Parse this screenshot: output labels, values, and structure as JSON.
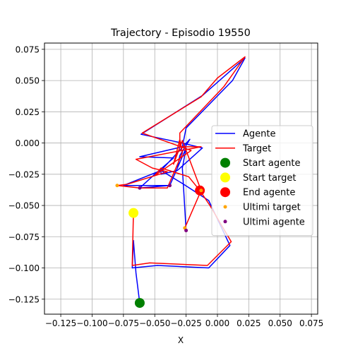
{
  "chart_data": {
    "type": "line",
    "title": "Trajectory - Episodio 19550",
    "xlabel": "X",
    "ylabel": "",
    "xlim": [
      -0.138,
      0.08
    ],
    "ylim": [
      -0.137,
      0.08
    ],
    "x_ticks": [
      -0.125,
      -0.1,
      -0.075,
      -0.05,
      -0.025,
      0.0,
      0.025,
      0.05,
      0.075
    ],
    "x_tick_labels": [
      "−0.125",
      "−0.100",
      "−0.075",
      "−0.050",
      "−0.025",
      "0.000",
      "0.025",
      "0.050",
      "0.075"
    ],
    "y_ticks": [
      0.075,
      0.05,
      0.025,
      0.0,
      -0.025,
      -0.05,
      -0.075,
      -0.1,
      -0.125
    ],
    "y_tick_labels": [
      "0.075",
      "0.050",
      "0.025",
      "0.000",
      "−0.025",
      "−0.050",
      "−0.075",
      "−0.100",
      "−0.125"
    ],
    "grid": true,
    "legend_position": "center-right",
    "series": [
      {
        "name": "Agente",
        "kind": "line",
        "color": "#0000ff",
        "points": [
          [
            -0.062,
            -0.128
          ],
          [
            -0.065,
            -0.104
          ],
          [
            -0.067,
            -0.078
          ],
          [
            -0.068,
            -0.1
          ],
          [
            -0.048,
            -0.098
          ],
          [
            -0.007,
            -0.1
          ],
          [
            0.01,
            -0.082
          ],
          [
            -0.007,
            -0.046
          ],
          [
            -0.027,
            -0.033
          ],
          [
            -0.045,
            -0.022
          ],
          [
            -0.045,
            -0.025
          ],
          [
            -0.032,
            -0.022
          ],
          [
            -0.012,
            -0.004
          ],
          [
            -0.028,
            0.0
          ],
          [
            -0.061,
            0.007
          ],
          [
            -0.012,
            0.038
          ],
          [
            0.022,
            0.068
          ],
          [
            0.012,
            0.05
          ],
          [
            -0.025,
            0.012
          ],
          [
            -0.028,
            -0.003
          ],
          [
            -0.062,
            -0.011
          ],
          [
            -0.035,
            -0.012
          ],
          [
            -0.05,
            -0.025
          ],
          [
            -0.062,
            -0.036
          ],
          [
            -0.038,
            -0.034
          ],
          [
            -0.06,
            -0.034
          ],
          [
            -0.075,
            -0.034
          ],
          [
            -0.045,
            -0.022
          ],
          [
            -0.022,
            0.003
          ],
          [
            -0.03,
            -0.01
          ],
          [
            -0.032,
            -0.02
          ],
          [
            -0.038,
            -0.034
          ],
          [
            -0.025,
            -0.004
          ],
          [
            -0.028,
            -0.02
          ],
          [
            -0.025,
            -0.07
          ]
        ]
      },
      {
        "name": "Target",
        "kind": "line",
        "color": "#ff0000",
        "points": [
          [
            -0.067,
            -0.056
          ],
          [
            -0.068,
            -0.098
          ],
          [
            -0.054,
            -0.096
          ],
          [
            -0.008,
            -0.098
          ],
          [
            0.011,
            -0.079
          ],
          [
            -0.006,
            -0.05
          ],
          [
            -0.014,
            -0.038
          ],
          [
            -0.023,
            -0.027
          ],
          [
            -0.045,
            -0.02
          ],
          [
            -0.05,
            -0.026
          ],
          [
            -0.021,
            -0.006
          ],
          [
            -0.032,
            -0.002
          ],
          [
            -0.06,
            0.008
          ],
          [
            -0.013,
            0.037
          ],
          [
            0.0,
            0.052
          ],
          [
            0.022,
            0.069
          ],
          [
            0.005,
            0.045
          ],
          [
            -0.03,
            0.008
          ],
          [
            -0.03,
            -0.003
          ],
          [
            -0.013,
            -0.003
          ],
          [
            -0.065,
            -0.013
          ],
          [
            -0.052,
            -0.02
          ],
          [
            -0.04,
            -0.023
          ],
          [
            -0.072,
            -0.033
          ],
          [
            -0.08,
            -0.034
          ],
          [
            -0.062,
            -0.036
          ],
          [
            -0.04,
            -0.036
          ],
          [
            -0.028,
            -0.008
          ],
          [
            -0.03,
            0.003
          ],
          [
            -0.035,
            -0.017
          ],
          [
            -0.028,
            0.002
          ],
          [
            -0.013,
            -0.038
          ],
          [
            -0.026,
            -0.068
          ]
        ]
      },
      {
        "name": "Start agente",
        "kind": "marker",
        "color": "#008000",
        "size": 7,
        "points": [
          [
            -0.062,
            -0.128
          ]
        ]
      },
      {
        "name": "Start target",
        "kind": "marker",
        "color": "#ffff00",
        "size": 7,
        "points": [
          [
            -0.067,
            -0.056
          ]
        ]
      },
      {
        "name": "End agente",
        "kind": "marker",
        "color": "#ff0000",
        "size": 7,
        "points": [
          [
            -0.014,
            -0.038
          ]
        ]
      },
      {
        "name": "Ultimi target",
        "kind": "marker",
        "color": "#ffa500",
        "size": 2.5,
        "points": [
          [
            -0.08,
            -0.034
          ],
          [
            -0.026,
            -0.068
          ],
          [
            -0.013,
            -0.038
          ]
        ]
      },
      {
        "name": "Ultimi agente",
        "kind": "marker",
        "color": "#800080",
        "size": 2.5,
        "points": [
          [
            -0.062,
            -0.036
          ],
          [
            -0.038,
            -0.034
          ],
          [
            -0.025,
            -0.07
          ]
        ]
      }
    ]
  }
}
